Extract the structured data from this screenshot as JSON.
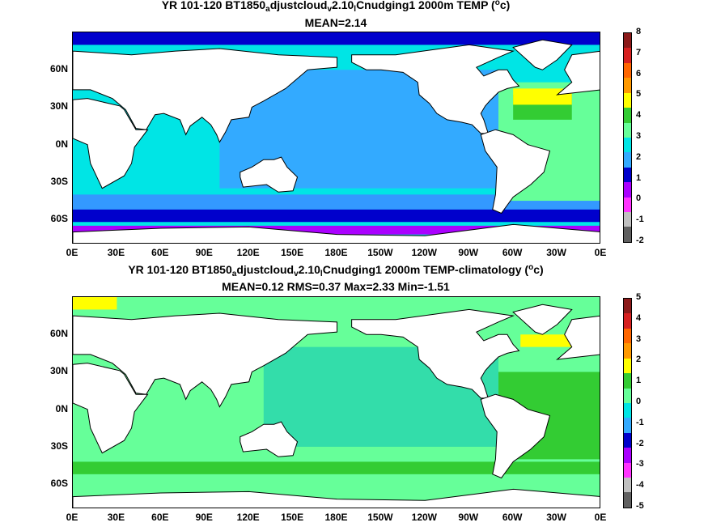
{
  "titles": {
    "top_line1_pre": "YR 101-120 BT1850",
    "top_line1_sub1": "a",
    "top_line1_mid": "djustcloud",
    "top_line1_sub2": "v",
    "top_line1_mid2": "2.10",
    "top_line1_sub3": "l",
    "top_line1_post": "Cnudging1 2000m TEMP (",
    "top_line1_sup": "o",
    "top_line1_end": "c)",
    "top_line2": "MEAN=2.14",
    "bot_line1_pre": "YR 101-120 BT1850",
    "bot_line1_sub1": "a",
    "bot_line1_mid": "djustcloud",
    "bot_line1_sub2": "v",
    "bot_line1_mid2": "2.10",
    "bot_line1_sub3": "l",
    "bot_line1_post": "Cnudging1 2000m TEMP-climatology (",
    "bot_line1_sup": "o",
    "bot_line1_end": "c)",
    "bot_line2": "MEAN=0.12   RMS=0.37   Max=2.33   Min=-1.51"
  },
  "chart_data": [
    {
      "type": "heatmap",
      "variable": "2000m TEMP",
      "mean": 2.14,
      "x_ticks": [
        "0E",
        "30E",
        "60E",
        "90E",
        "120E",
        "150E",
        "180E",
        "150W",
        "120W",
        "90W",
        "60W",
        "30W",
        "0E"
      ],
      "y_ticks": [
        "60N",
        "30N",
        "0N",
        "30S",
        "60S"
      ],
      "xlim": [
        0,
        360
      ],
      "ylim": [
        -80,
        90
      ],
      "colorbar": {
        "ticks": [
          "8",
          "7",
          "6",
          "5",
          "4",
          "3",
          "2",
          "1",
          "0",
          "-1",
          "-2"
        ],
        "colors": [
          "#8b1a1a",
          "#d62020",
          "#ff6600",
          "#ff9900",
          "#ffff00",
          "#33cc33",
          "#66ff99",
          "#00e5e5",
          "#33aaff",
          "#0000cc",
          "#aa00ff",
          "#ff33ff",
          "#c0c0c0",
          "#606060"
        ]
      }
    },
    {
      "type": "heatmap",
      "variable": "2000m TEMP-climatology",
      "mean": 0.12,
      "rms": 0.37,
      "max": 2.33,
      "min": -1.51,
      "x_ticks": [
        "0E",
        "30E",
        "60E",
        "90E",
        "120E",
        "150E",
        "180E",
        "150W",
        "120W",
        "90W",
        "60W",
        "30W",
        "0E"
      ],
      "y_ticks": [
        "60N",
        "30N",
        "0N",
        "30S",
        "60S"
      ],
      "xlim": [
        0,
        360
      ],
      "ylim": [
        -80,
        90
      ],
      "colorbar": {
        "ticks": [
          "5",
          "4",
          "3",
          "2",
          "1",
          "0",
          "-1",
          "-2",
          "-3",
          "-4",
          "-5"
        ],
        "colors": [
          "#8b1a1a",
          "#d62020",
          "#ff6600",
          "#ff9900",
          "#ffff00",
          "#33cc33",
          "#66ff99",
          "#00e5e5",
          "#33aaff",
          "#0000cc",
          "#aa00ff",
          "#ff33ff",
          "#c0c0c0",
          "#606060"
        ]
      }
    }
  ]
}
